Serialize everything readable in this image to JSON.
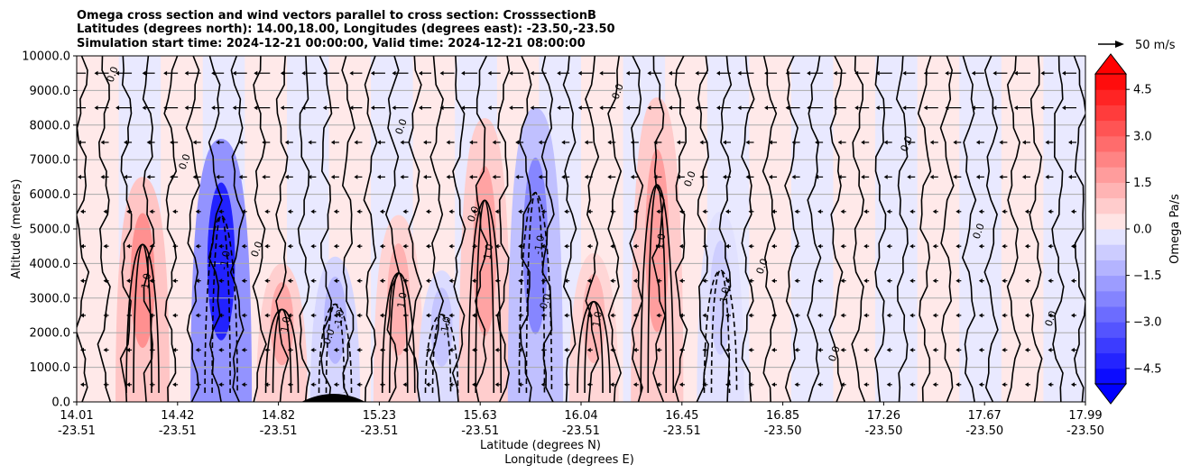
{
  "chart_data": {
    "type": "contour",
    "title_lines": [
      "Omega cross section and wind vectors parallel to cross section: CrosssectionB",
      "Latitudes (degrees north): 14.00,18.00, Longitudes (degrees east): -23.50,-23.50",
      "Simulation start time: 2024-12-21 00:00:00, Valid time: 2024-12-21 08:00:00"
    ],
    "xlabel_lines": [
      "Latitude (degrees N)",
      "Longitude (degrees E)"
    ],
    "ylabel": "Altitude (meters)",
    "ylim": [
      0,
      10000
    ],
    "y_ticks": [
      "0.0",
      "1000.0",
      "2000.0",
      "3000.0",
      "4000.0",
      "5000.0",
      "6000.0",
      "7000.0",
      "8000.0",
      "9000.0",
      "10000.0"
    ],
    "x_ticks": [
      {
        "lat": "14.01",
        "lon": "-23.51"
      },
      {
        "lat": "14.42",
        "lon": "-23.51"
      },
      {
        "lat": "14.82",
        "lon": "-23.51"
      },
      {
        "lat": "15.23",
        "lon": "-23.51"
      },
      {
        "lat": "15.63",
        "lon": "-23.51"
      },
      {
        "lat": "16.04",
        "lon": "-23.51"
      },
      {
        "lat": "16.45",
        "lon": "-23.51"
      },
      {
        "lat": "16.85",
        "lon": "-23.50"
      },
      {
        "lat": "17.26",
        "lon": "-23.50"
      },
      {
        "lat": "17.67",
        "lon": "-23.50"
      },
      {
        "lat": "17.99",
        "lon": "-23.50"
      }
    ],
    "xlim": [
      14.01,
      17.99
    ],
    "grid": "horizontal",
    "colorbar": {
      "label": "Omega Pa/s",
      "range": [
        -5,
        5
      ],
      "extend": "both",
      "tick_labels": [
        "4.5",
        "3.0",
        "1.5",
        "0.0",
        "−1.5",
        "−3.0",
        "−4.5"
      ],
      "tick_values": [
        4.5,
        3.0,
        1.5,
        0.0,
        -1.5,
        -3.0,
        -4.5
      ],
      "positive_color": "#ff0000",
      "negative_color": "#0000ff"
    },
    "quiver_key": {
      "label": "50 m/s"
    },
    "features": [
      {
        "lat": 14.27,
        "alt_top": 6500,
        "omega": 2.0
      },
      {
        "lat": 14.58,
        "alt_top": 7600,
        "omega": -4.3
      },
      {
        "lat": 14.82,
        "alt_top": 4000,
        "omega": 1.5
      },
      {
        "lat": 15.03,
        "alt_top": 4200,
        "omega": -1.2
      },
      {
        "lat": 15.28,
        "alt_top": 5400,
        "omega": 1.3
      },
      {
        "lat": 15.45,
        "alt_top": 3800,
        "omega": -0.9
      },
      {
        "lat": 15.62,
        "alt_top": 8200,
        "omega": 1.6
      },
      {
        "lat": 15.82,
        "alt_top": 8500,
        "omega": -2.2
      },
      {
        "lat": 16.05,
        "alt_top": 4300,
        "omega": 1.2
      },
      {
        "lat": 16.3,
        "alt_top": 8800,
        "omega": 1.7
      },
      {
        "lat": 16.55,
        "alt_top": 5500,
        "omega": -0.7
      }
    ],
    "contour_labels": [
      "0.0",
      "1.0",
      "2.0",
      "-1.0",
      "-2.0",
      "4.0"
    ]
  }
}
